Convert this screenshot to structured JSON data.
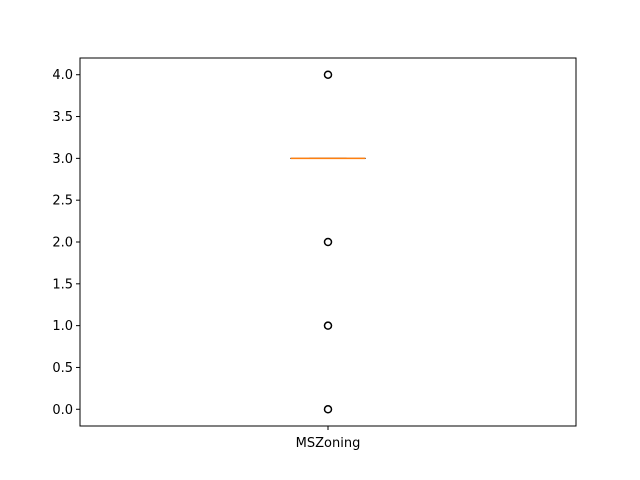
{
  "chart_data": {
    "type": "box",
    "title": "",
    "xlabel": "",
    "ylabel": "",
    "categories": [
      "MSZoning"
    ],
    "ylim": [
      -0.2,
      4.2
    ],
    "yticks": [
      0.0,
      0.5,
      1.0,
      1.5,
      2.0,
      2.5,
      3.0,
      3.5,
      4.0
    ],
    "ytick_labels": [
      "0.0",
      "0.5",
      "1.0",
      "1.5",
      "2.0",
      "2.5",
      "3.0",
      "3.5",
      "4.0"
    ],
    "boxes": [
      {
        "category": "MSZoning",
        "q1": 3.0,
        "median": 3.0,
        "q3": 3.0,
        "whisker_low": 3.0,
        "whisker_high": 3.0,
        "fliers": [
          0.0,
          1.0,
          2.0,
          4.0
        ]
      }
    ],
    "grid": false,
    "colors": {
      "box": "#000000",
      "median": "#ff7f0e",
      "flier_edge": "#000000",
      "axis": "#000000"
    }
  }
}
